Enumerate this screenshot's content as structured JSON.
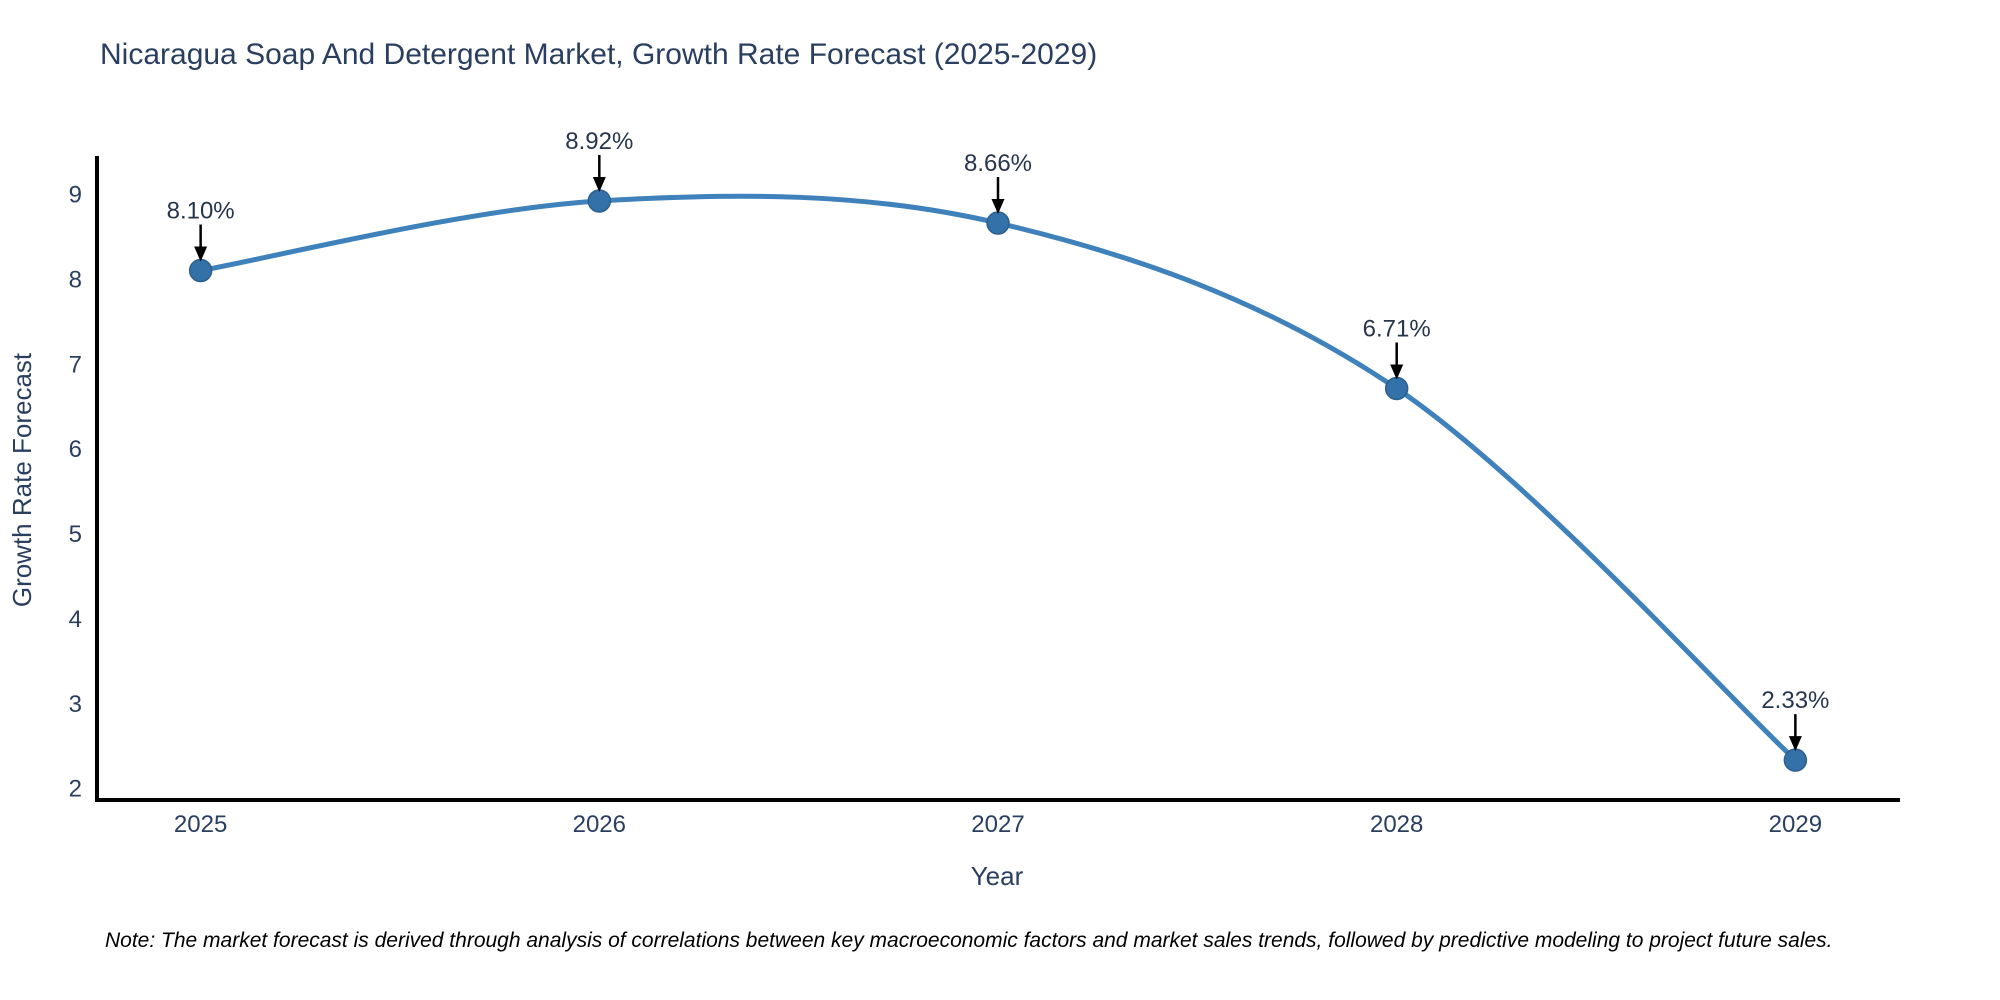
{
  "note": "Note: The market forecast is derived through analysis of correlations between key macroeconomic factors and market sales trends, followed by predictive modeling to project future sales.",
  "chart_data": {
    "type": "line",
    "title": "Nicaragua Soap And Detergent Market, Growth Rate Forecast (2025-2029)",
    "xlabel": "Year",
    "ylabel": "Growth Rate Forecast",
    "categories": [
      "2025",
      "2026",
      "2027",
      "2028",
      "2029"
    ],
    "values": [
      8.1,
      8.92,
      8.66,
      6.71,
      2.33
    ],
    "point_labels": [
      "8.10%",
      "8.92%",
      "8.66%",
      "6.71%",
      "2.33%"
    ],
    "ylim": [
      1.86,
      9.45
    ],
    "yticks": [
      2,
      3,
      4,
      5,
      6,
      7,
      8,
      9
    ],
    "grid": false,
    "legend_position": "none",
    "smooth_line": true,
    "colors": {
      "line": "#3f81ba",
      "marker": "#3471a8",
      "marker_edge": "#2d5f8d",
      "axis": "#000000",
      "text": "#2a3f5f",
      "annotation_arrow": "#000000",
      "background": "#ffffff"
    }
  }
}
